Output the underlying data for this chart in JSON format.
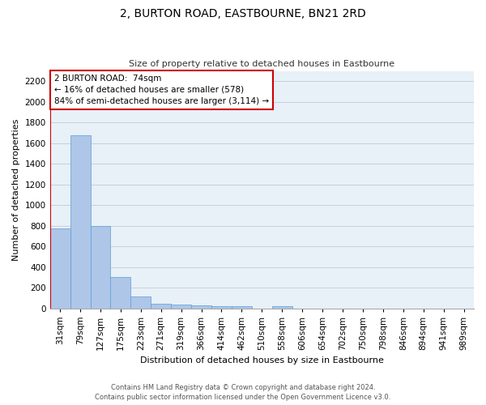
{
  "title": "2, BURTON ROAD, EASTBOURNE, BN21 2RD",
  "subtitle": "Size of property relative to detached houses in Eastbourne",
  "xlabel": "Distribution of detached houses by size in Eastbourne",
  "ylabel": "Number of detached properties",
  "categories": [
    "31sqm",
    "79sqm",
    "127sqm",
    "175sqm",
    "223sqm",
    "271sqm",
    "319sqm",
    "366sqm",
    "414sqm",
    "462sqm",
    "510sqm",
    "558sqm",
    "606sqm",
    "654sqm",
    "702sqm",
    "750sqm",
    "798sqm",
    "846sqm",
    "894sqm",
    "941sqm",
    "989sqm"
  ],
  "values": [
    770,
    1680,
    800,
    300,
    115,
    45,
    35,
    28,
    22,
    22,
    0,
    22,
    0,
    0,
    0,
    0,
    0,
    0,
    0,
    0,
    0
  ],
  "bar_color": "#aec6e8",
  "bar_edge_color": "#5a9fd4",
  "vline_color": "#cc0000",
  "annotation_text": "2 BURTON ROAD:  74sqm\n← 16% of detached houses are smaller (578)\n84% of semi-detached houses are larger (3,114) →",
  "annotation_box_color": "#ffffff",
  "annotation_box_edge_color": "#cc0000",
  "ylim": [
    0,
    2300
  ],
  "yticks": [
    0,
    200,
    400,
    600,
    800,
    1000,
    1200,
    1400,
    1600,
    1800,
    2000,
    2200
  ],
  "footer_line1": "Contains HM Land Registry data © Crown copyright and database right 2024.",
  "footer_line2": "Contains public sector information licensed under the Open Government Licence v3.0.",
  "grid_color": "#c8d0dc",
  "bg_color": "#e8f0f8",
  "title_fontsize": 10,
  "subtitle_fontsize": 8,
  "ylabel_fontsize": 8,
  "xlabel_fontsize": 8,
  "tick_fontsize": 7.5,
  "footer_fontsize": 6
}
